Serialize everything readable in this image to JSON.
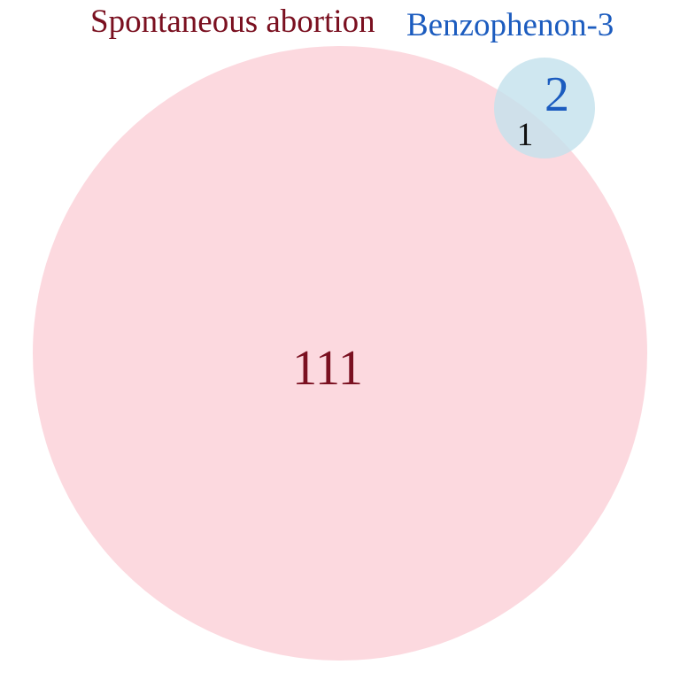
{
  "venn": {
    "sets": [
      {
        "name": "Spontaneous abortion",
        "only_count": "111",
        "fill_color": "#fcd7dd",
        "text_color": "#7a1020"
      },
      {
        "name": "Benzophenon-3",
        "only_count": "2",
        "fill_color": "#c3e1ec",
        "text_color": "#1c5cbf"
      }
    ],
    "intersection": {
      "count": "1",
      "text_color": "#111111"
    }
  }
}
